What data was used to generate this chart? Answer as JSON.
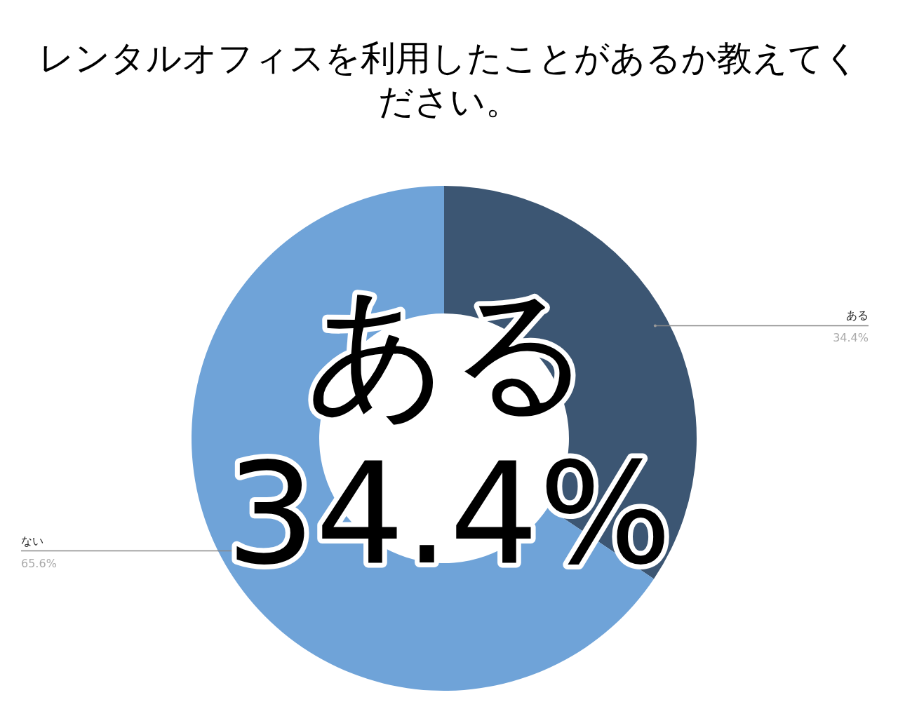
{
  "chart_data": {
    "type": "donut",
    "title": "レンタルオフィスを利用したことがあるか教えてください。",
    "categories": [
      "ある",
      "ない"
    ],
    "values": [
      34.4,
      65.6
    ],
    "colors": [
      "#3c5673",
      "#6fa3d8"
    ],
    "value_labels": [
      "34.4%",
      "65.6%"
    ],
    "annotations": [
      "ある",
      "34.4%"
    ]
  }
}
